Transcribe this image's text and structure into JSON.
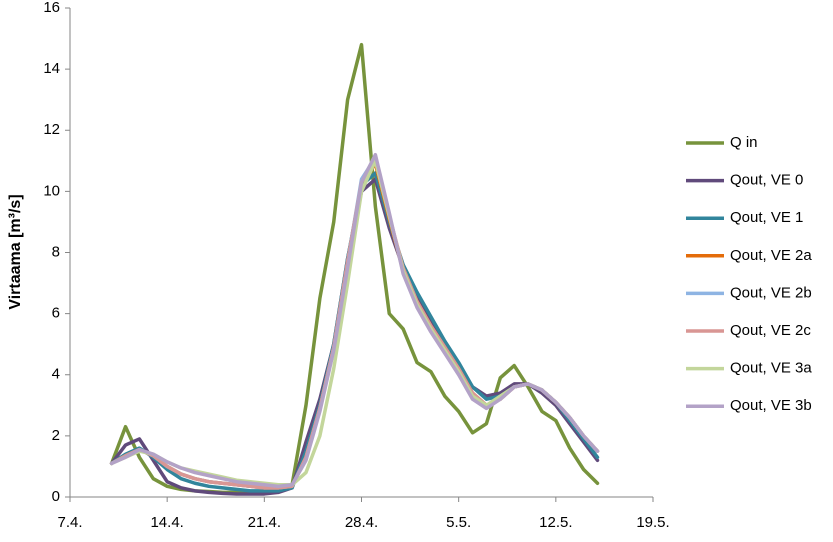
{
  "chart_data": {
    "type": "line",
    "y_label": "Virtaama [m³/s]",
    "x": [
      3,
      4,
      5,
      6,
      7,
      8,
      9,
      10,
      11,
      12,
      13,
      14,
      15,
      16,
      17,
      18,
      19,
      20,
      21,
      22,
      23,
      24,
      25,
      26,
      27,
      28,
      29,
      30,
      31,
      32,
      33,
      34,
      35,
      36,
      37,
      38
    ],
    "xlim": [
      0,
      42
    ],
    "xticks": [
      {
        "value": 0,
        "label": "7.4."
      },
      {
        "value": 7,
        "label": "14.4."
      },
      {
        "value": 14,
        "label": "21.4."
      },
      {
        "value": 21,
        "label": "28.4."
      },
      {
        "value": 28,
        "label": "5.5."
      },
      {
        "value": 35,
        "label": "12.5."
      },
      {
        "value": 42,
        "label": "19.5."
      }
    ],
    "ylim": [
      0,
      16
    ],
    "yticks": [
      0,
      2,
      4,
      6,
      8,
      10,
      12,
      14,
      16
    ],
    "grid": false,
    "legend": "right",
    "series": [
      {
        "name": "Q in",
        "color": "#77933c",
        "values": [
          1.1,
          2.3,
          1.3,
          0.6,
          0.35,
          0.25,
          0.2,
          0.18,
          0.15,
          0.15,
          0.15,
          0.15,
          0.2,
          0.4,
          3.0,
          6.5,
          9.0,
          13.0,
          14.8,
          9.5,
          6.0,
          5.5,
          4.4,
          4.1,
          3.3,
          2.8,
          2.1,
          2.4,
          3.9,
          4.3,
          3.6,
          2.8,
          2.5,
          1.6,
          0.9,
          0.45
        ]
      },
      {
        "name": "Qout, VE 0",
        "color": "#604a7b",
        "values": [
          1.1,
          1.7,
          1.9,
          1.2,
          0.5,
          0.3,
          0.2,
          0.15,
          0.12,
          0.1,
          0.1,
          0.1,
          0.15,
          0.3,
          1.8,
          3.2,
          5.0,
          7.8,
          10.0,
          10.4,
          8.8,
          7.5,
          6.6,
          5.8,
          5.0,
          4.3,
          3.6,
          3.3,
          3.4,
          3.7,
          3.7,
          3.4,
          3.0,
          2.4,
          1.8,
          1.2
        ]
      },
      {
        "name": "Qout, VE 1",
        "color": "#31859c",
        "values": [
          1.1,
          1.4,
          1.6,
          1.3,
          0.9,
          0.6,
          0.45,
          0.35,
          0.3,
          0.25,
          0.2,
          0.2,
          0.2,
          0.3,
          1.5,
          3.0,
          5.0,
          7.8,
          10.2,
          10.6,
          9.0,
          7.6,
          6.7,
          5.9,
          5.1,
          4.4,
          3.6,
          3.2,
          3.3,
          3.6,
          3.7,
          3.5,
          3.1,
          2.5,
          1.9,
          1.3
        ]
      },
      {
        "name": "Qout, VE 2a",
        "color": "#e46c0a",
        "values": [
          1.1,
          1.35,
          1.55,
          1.35,
          1.0,
          0.75,
          0.6,
          0.5,
          0.45,
          0.4,
          0.35,
          0.3,
          0.3,
          0.35,
          1.3,
          2.9,
          4.9,
          7.7,
          10.3,
          10.9,
          9.1,
          7.4,
          6.4,
          5.6,
          4.9,
          4.2,
          3.4,
          3.0,
          3.2,
          3.6,
          3.7,
          3.5,
          3.1,
          2.6,
          2.0,
          1.5
        ]
      },
      {
        "name": "Qout, VE 2b",
        "color": "#8eb4e3",
        "values": [
          1.1,
          1.35,
          1.55,
          1.35,
          1.0,
          0.75,
          0.6,
          0.5,
          0.45,
          0.4,
          0.35,
          0.3,
          0.3,
          0.35,
          1.3,
          2.9,
          4.9,
          7.7,
          10.4,
          11.1,
          9.2,
          7.4,
          6.3,
          5.5,
          4.8,
          4.1,
          3.3,
          3.0,
          3.2,
          3.6,
          3.7,
          3.5,
          3.1,
          2.6,
          2.0,
          1.5
        ]
      },
      {
        "name": "Qout, VE 2c",
        "color": "#d99694",
        "values": [
          1.1,
          1.35,
          1.55,
          1.35,
          1.0,
          0.75,
          0.6,
          0.5,
          0.45,
          0.4,
          0.35,
          0.3,
          0.3,
          0.35,
          1.3,
          2.9,
          4.9,
          7.7,
          10.3,
          11.0,
          9.2,
          7.5,
          6.4,
          5.6,
          4.9,
          4.2,
          3.4,
          3.0,
          3.2,
          3.6,
          3.7,
          3.5,
          3.1,
          2.6,
          2.0,
          1.5
        ]
      },
      {
        "name": "Qout, VE 3a",
        "color": "#c3d69b",
        "values": [
          1.1,
          1.3,
          1.5,
          1.4,
          1.15,
          0.95,
          0.85,
          0.75,
          0.65,
          0.55,
          0.5,
          0.45,
          0.4,
          0.4,
          0.8,
          2.0,
          4.2,
          7.0,
          10.0,
          11.0,
          9.2,
          7.4,
          6.3,
          5.5,
          4.8,
          4.1,
          3.3,
          3.0,
          3.3,
          3.6,
          3.7,
          3.5,
          3.1,
          2.6,
          2.0,
          1.5
        ]
      },
      {
        "name": "Qout, VE 3b",
        "color": "#b3a2c7",
        "values": [
          1.1,
          1.3,
          1.55,
          1.4,
          1.15,
          0.95,
          0.8,
          0.7,
          0.6,
          0.5,
          0.45,
          0.4,
          0.35,
          0.4,
          1.2,
          2.8,
          4.8,
          7.5,
          10.3,
          11.2,
          9.3,
          7.3,
          6.2,
          5.4,
          4.7,
          4.0,
          3.2,
          2.9,
          3.2,
          3.6,
          3.7,
          3.5,
          3.1,
          2.6,
          2.0,
          1.5
        ]
      }
    ]
  }
}
